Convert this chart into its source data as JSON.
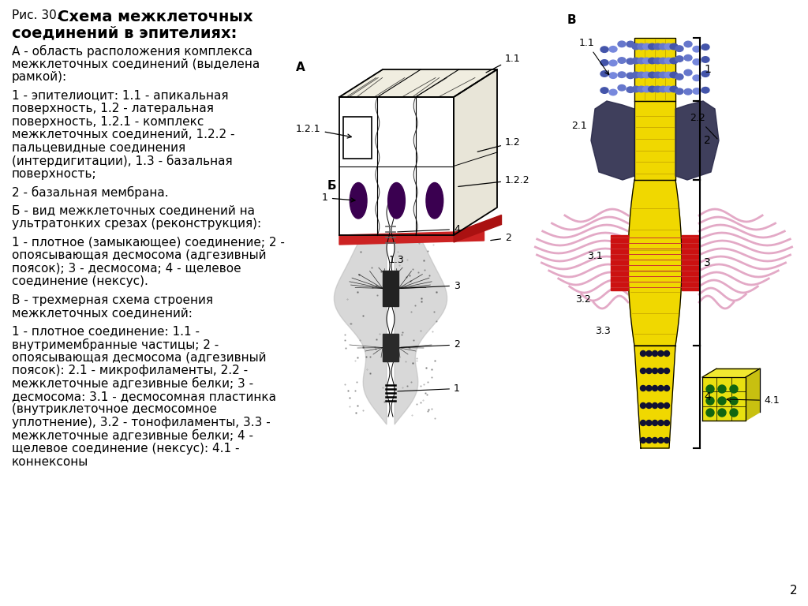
{
  "bg_color": "#ffffff",
  "page_number": "2",
  "title_prefix_text": "Рис. 30. ",
  "title_prefix_fontsize": 11,
  "title_bold_text": "Схема межклеточных",
  "title_bold2_text": "соединений в эпителиях:",
  "title_bold_fontsize": 14,
  "body_fontsize": 11,
  "body_lines": [
    "А - область расположения комплекса",
    "межклеточных соединений (выделена",
    "рамкой):",
    "",
    "1 - эпителиоцит: 1.1 - апикальная",
    "поверхность, 1.2 - латеральная",
    "поверхность, 1.2.1 - комплекс",
    "межклеточных соединений, 1.2.2 -",
    "пальцевидные соединения",
    "(интердигитации), 1.3 - базальная",
    "поверхность;",
    "",
    "2 - базальная мембрана.",
    "",
    "Б - вид межклеточных соединений на",
    "ультратонких срезах (реконструкция):",
    "",
    "1 - плотное (замыкающее) соединение; 2 -",
    "опоясывающая десмосома (адгезивный",
    "поясок); 3 - десмосома; 4 - щелевое",
    "соединение (нексус).",
    "",
    "В - трехмерная схема строения",
    "межклеточных соединений:",
    "",
    "1 - плотное соединение: 1.1 -",
    "внутримембранные частицы; 2 -",
    "опоясывающая десмосома (адгезивный",
    "поясок): 2.1 - микрофиламенты, 2.2 -",
    "межклеточные адгезивные белки; 3 -",
    "десмосома: 3.1 - десмосомная пластинка",
    "(внутриклеточное десмосомное",
    "уплотнение), 3.2 - тонофиламенты, 3.3 -",
    "межклеточные адгезивные белки; 4 -",
    "щелевое соединение (нексус): 4.1 -",
    "коннексоны"
  ]
}
